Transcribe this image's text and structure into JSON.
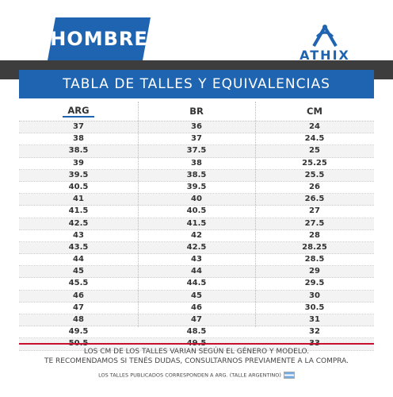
{
  "header": {
    "badge": "HOMBRE",
    "brand": "ATHIX",
    "brand_color": "#1e64b0",
    "band_color": "#3d3d3d"
  },
  "title": "TABLA DE TALLES Y EQUIVALENCIAS",
  "table": {
    "columns": [
      "ARG",
      "BR",
      "CM"
    ],
    "rows": [
      [
        "37",
        "36",
        "24"
      ],
      [
        "38",
        "37",
        "24.5"
      ],
      [
        "38.5",
        "37.5",
        "25"
      ],
      [
        "39",
        "38",
        "25.25"
      ],
      [
        "39.5",
        "38.5",
        "25.5"
      ],
      [
        "40.5",
        "39.5",
        "26"
      ],
      [
        "41",
        "40",
        "26.5"
      ],
      [
        "41.5",
        "40.5",
        "27"
      ],
      [
        "42.5",
        "41.5",
        "27.5"
      ],
      [
        "43",
        "42",
        "28"
      ],
      [
        "43.5",
        "42.5",
        "28.25"
      ],
      [
        "44",
        "43",
        "28.5"
      ],
      [
        "45",
        "44",
        "29"
      ],
      [
        "45.5",
        "44.5",
        "29.5"
      ],
      [
        "46",
        "45",
        "30"
      ],
      [
        "47",
        "46",
        "30.5"
      ],
      [
        "48",
        "47",
        "31"
      ],
      [
        "49.5",
        "48.5",
        "32"
      ],
      [
        "50.5",
        "49.5",
        "33"
      ]
    ]
  },
  "footer": {
    "line1": "LOS CM DE LOS TALLES VARIAN SEGÚN EL GÉNERO Y MODELO.",
    "line2": "TE RECOMENDAMOS SI TENÉS DUDAS, CONSULTARNOS PREVIAMENTE A LA COMPRA.",
    "note": "LOS TALLES PUBLICADOS CORRESPONDEN A ARG. (TALLE ARGENTINO)",
    "accent_color": "#c8102e"
  }
}
